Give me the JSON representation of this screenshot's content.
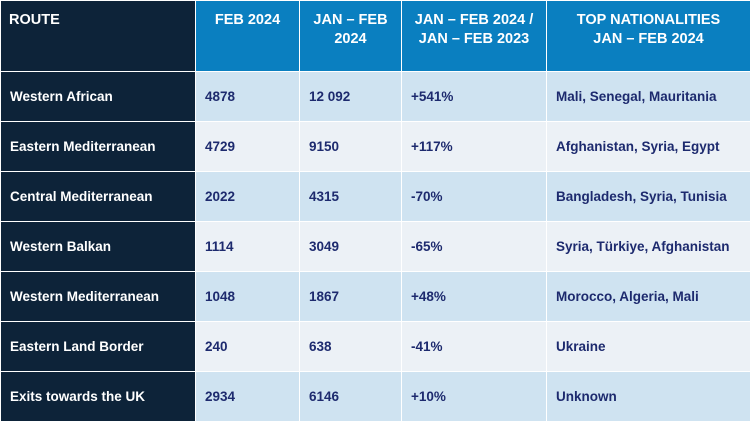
{
  "header": {
    "route": "ROUTE",
    "feb": "FEB 2024",
    "janfeb_1": "JAN – FEB",
    "janfeb_2": "2024",
    "change_1": "JAN – FEB 2024 /",
    "change_2": "JAN – FEB 2023",
    "nat_1": "TOP NATIONALITIES",
    "nat_2": "JAN – FEB 2024"
  },
  "rows": [
    {
      "route": "Western African",
      "feb": "4878",
      "janfeb": "12 092",
      "change": "+541%",
      "nat": "Mali, Senegal, Mauritania"
    },
    {
      "route": "Eastern Mediterranean",
      "feb": "4729",
      "janfeb": "9150",
      "change": "+117%",
      "nat": "Afghanistan, Syria, Egypt"
    },
    {
      "route": "Central Mediterranean",
      "feb": "2022",
      "janfeb": "4315",
      "change": "-70%",
      "nat": "Bangladesh, Syria, Tunisia"
    },
    {
      "route": "Western Balkan",
      "feb": "1114",
      "janfeb": "3049",
      "change": "-65%",
      "nat": "Syria, Türkiye, Afghanistan"
    },
    {
      "route": "Western Mediterranean",
      "feb": "1048",
      "janfeb": "1867",
      "change": "+48%",
      "nat": "Morocco, Algeria, Mali"
    },
    {
      "route": "Eastern Land Border",
      "feb": "240",
      "janfeb": "638",
      "change": "-41%",
      "nat": "Ukraine"
    },
    {
      "route": "Exits towards the UK",
      "feb": "2934",
      "janfeb": "6146",
      "change": "+10%",
      "nat": "Unknown"
    }
  ],
  "colors": {
    "header_blue": "#0a7fc0",
    "route_navy": "#0d2339",
    "row_light_blue": "#cfe3f1",
    "row_light_grey": "#ecf1f6",
    "value_text": "#1d2a6e"
  }
}
